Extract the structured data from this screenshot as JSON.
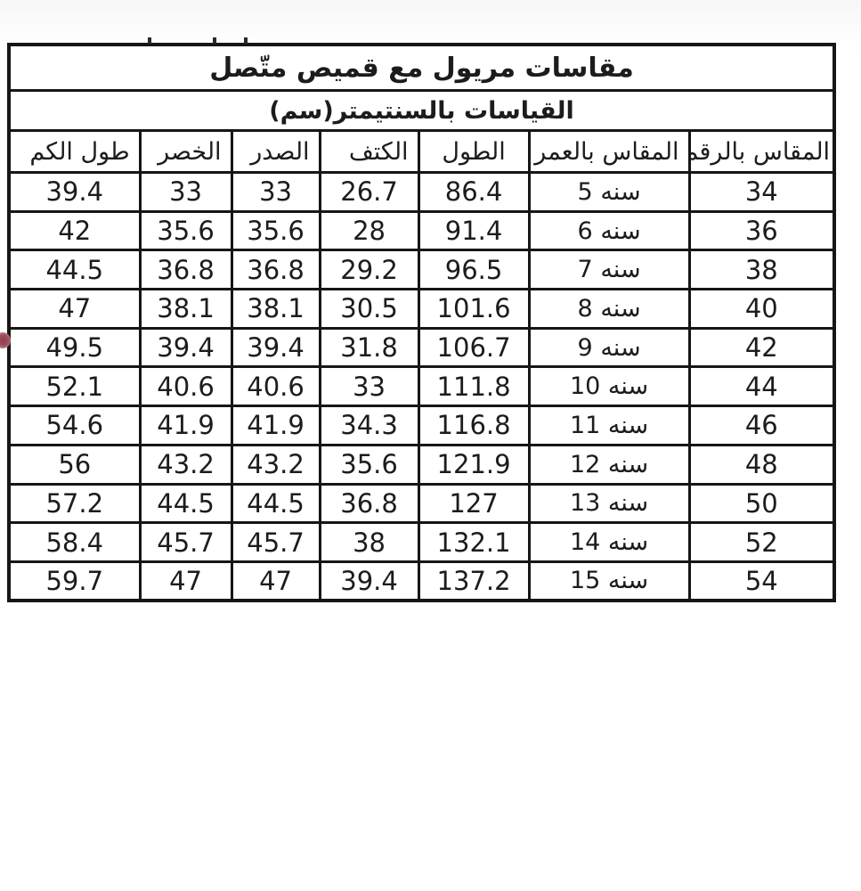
{
  "table": {
    "title": "مقاسات مريول مع قميص متّصل",
    "subtitle": "القياسات بالسنتيمتر(سم)",
    "columns": [
      "المقاس بالرقم",
      "المقاس بالعمر",
      "الطول",
      "الكتف",
      "الصدر",
      "الخصر",
      "طول الكم"
    ],
    "rows": [
      [
        "34",
        "سنه 5",
        "86.4",
        "26.7",
        "33",
        "33",
        "39.4"
      ],
      [
        "36",
        "سنه 6",
        "91.4",
        "28",
        "35.6",
        "35.6",
        "42"
      ],
      [
        "38",
        "سنه 7",
        "96.5",
        "29.2",
        "36.8",
        "36.8",
        "44.5"
      ],
      [
        "40",
        "سنه 8",
        "101.6",
        "30.5",
        "38.1",
        "38.1",
        "47"
      ],
      [
        "42",
        "سنه 9",
        "106.7",
        "31.8",
        "39.4",
        "39.4",
        "49.5"
      ],
      [
        "44",
        "سنه 10",
        "111.8",
        "33",
        "40.6",
        "40.6",
        "52.1"
      ],
      [
        "46",
        "سنه 11",
        "116.8",
        "34.3",
        "41.9",
        "41.9",
        "54.6"
      ],
      [
        "48",
        "سنه 12",
        "121.9",
        "35.6",
        "43.2",
        "43.2",
        "56"
      ],
      [
        "50",
        "سنه 13",
        "127",
        "36.8",
        "44.5",
        "44.5",
        "57.2"
      ],
      [
        "52",
        "سنه 14",
        "132.1",
        "38",
        "45.7",
        "45.7",
        "58.4"
      ],
      [
        "54",
        "سنه 15",
        "137.2",
        "39.4",
        "47",
        "47",
        "59.7"
      ]
    ]
  },
  "colors": {
    "border": "#161616",
    "text": "#1c1c1c",
    "background": "#ffffff",
    "artifact_red_dot": "#8e3e4b"
  }
}
